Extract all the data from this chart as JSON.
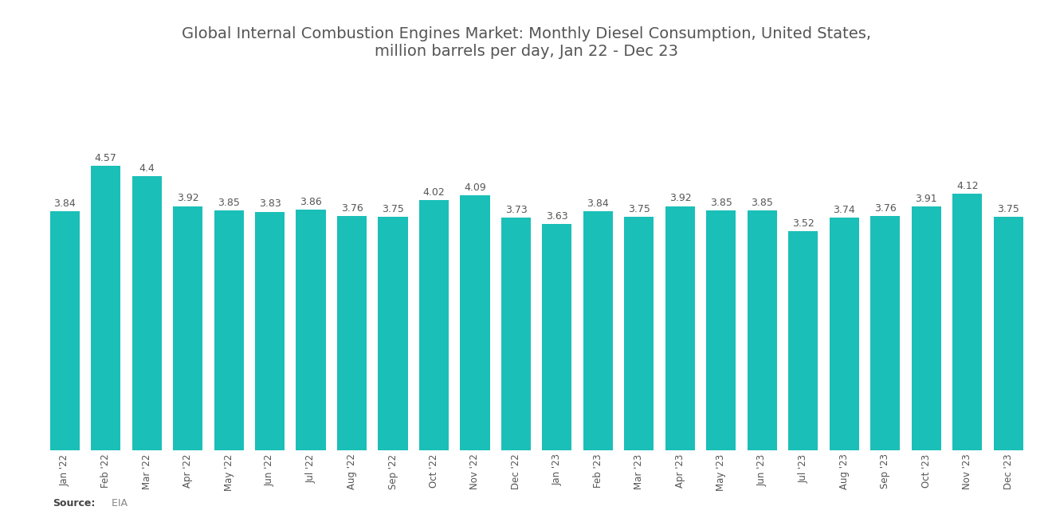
{
  "title": "Global Internal Combustion Engines Market: Monthly Diesel Consumption, United States,\nmillion barrels per day, Jan 22 - Dec 23",
  "categories": [
    "Jan '22",
    "Feb '22",
    "Mar '22",
    "Apr '22",
    "May '22",
    "Jun '22",
    "Jul '22",
    "Aug '22",
    "Sep '22",
    "Oct '22",
    "Nov '22",
    "Dec '22",
    "Jan '23",
    "Feb '23",
    "Mar '23",
    "Apr '23",
    "May '23",
    "Jun '23",
    "Jul '23",
    "Aug '23",
    "Sep '23",
    "Oct '23",
    "Nov '23",
    "Dec '23"
  ],
  "values": [
    3.84,
    4.57,
    4.4,
    3.92,
    3.85,
    3.83,
    3.86,
    3.76,
    3.75,
    4.02,
    4.09,
    3.73,
    3.63,
    3.84,
    3.75,
    3.92,
    3.85,
    3.85,
    3.52,
    3.74,
    3.76,
    3.91,
    4.12,
    3.75
  ],
  "bar_color": "#1ABFB8",
  "background_color": "#ffffff",
  "title_fontsize": 14,
  "label_fontsize": 9,
  "tick_fontsize": 8.5,
  "source_label": "Source:",
  "source_value": "  EIA",
  "ylim_min": 0,
  "ylim_max": 5.1,
  "bar_width": 0.72
}
